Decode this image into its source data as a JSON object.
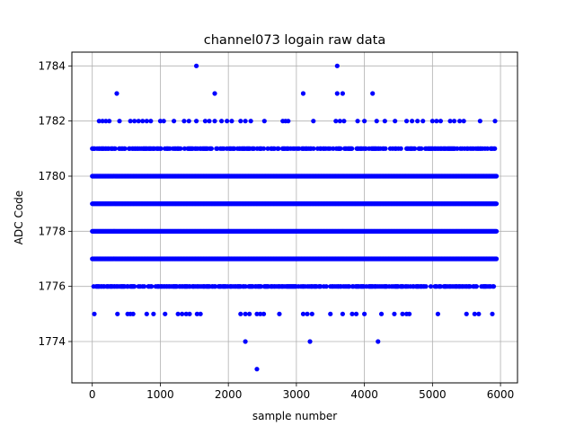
{
  "chart_data": {
    "type": "scatter",
    "title": "channel073 logain raw data",
    "xlabel": "sample number",
    "ylabel": "ADC Code",
    "xlim": [
      -300,
      6250
    ],
    "ylim": [
      1772.5,
      1784.5
    ],
    "xticks": [
      0,
      1000,
      2000,
      3000,
      4000,
      5000,
      6000
    ],
    "yticks": [
      1774,
      1776,
      1778,
      1780,
      1782,
      1784
    ],
    "grid": true,
    "marker_color": "#0000ff",
    "series": [
      {
        "bands": [
          {
            "y": 1781,
            "start": 0,
            "end": 5920,
            "step": 12,
            "density": 0.55,
            "seed": 11
          },
          {
            "y": 1780,
            "start": 0,
            "end": 5940,
            "step": 10,
            "density": 1.0,
            "seed": 12
          },
          {
            "y": 1779,
            "start": 0,
            "end": 5940,
            "step": 10,
            "density": 1.0,
            "seed": 13
          },
          {
            "y": 1778,
            "start": 0,
            "end": 5940,
            "step": 10,
            "density": 1.0,
            "seed": 14
          },
          {
            "y": 1777,
            "start": 0,
            "end": 5940,
            "step": 10,
            "density": 1.0,
            "seed": 15
          },
          {
            "y": 1776,
            "start": 20,
            "end": 5920,
            "step": 12,
            "density": 0.6,
            "seed": 16
          }
        ],
        "points": [
          {
            "x": 1530,
            "y": 1784
          },
          {
            "x": 3600,
            "y": 1784
          },
          {
            "x": 360,
            "y": 1783
          },
          {
            "x": 1800,
            "y": 1783
          },
          {
            "x": 3100,
            "y": 1783
          },
          {
            "x": 3600,
            "y": 1783
          },
          {
            "x": 3680,
            "y": 1783
          },
          {
            "x": 4120,
            "y": 1783
          },
          {
            "x": 100,
            "y": 1782
          },
          {
            "x": 150,
            "y": 1782
          },
          {
            "x": 200,
            "y": 1782
          },
          {
            "x": 250,
            "y": 1782
          },
          {
            "x": 400,
            "y": 1782
          },
          {
            "x": 560,
            "y": 1782
          },
          {
            "x": 620,
            "y": 1782
          },
          {
            "x": 680,
            "y": 1782
          },
          {
            "x": 740,
            "y": 1782
          },
          {
            "x": 800,
            "y": 1782
          },
          {
            "x": 860,
            "y": 1782
          },
          {
            "x": 1000,
            "y": 1782
          },
          {
            "x": 1050,
            "y": 1782
          },
          {
            "x": 1200,
            "y": 1782
          },
          {
            "x": 1350,
            "y": 1782
          },
          {
            "x": 1420,
            "y": 1782
          },
          {
            "x": 1530,
            "y": 1782
          },
          {
            "x": 1660,
            "y": 1782
          },
          {
            "x": 1720,
            "y": 1782
          },
          {
            "x": 1800,
            "y": 1782
          },
          {
            "x": 1900,
            "y": 1782
          },
          {
            "x": 1980,
            "y": 1782
          },
          {
            "x": 2050,
            "y": 1782
          },
          {
            "x": 2180,
            "y": 1782
          },
          {
            "x": 2250,
            "y": 1782
          },
          {
            "x": 2330,
            "y": 1782
          },
          {
            "x": 2530,
            "y": 1782
          },
          {
            "x": 2800,
            "y": 1782
          },
          {
            "x": 2840,
            "y": 1782
          },
          {
            "x": 2880,
            "y": 1782
          },
          {
            "x": 3250,
            "y": 1782
          },
          {
            "x": 3580,
            "y": 1782
          },
          {
            "x": 3640,
            "y": 1782
          },
          {
            "x": 3700,
            "y": 1782
          },
          {
            "x": 3900,
            "y": 1782
          },
          {
            "x": 4000,
            "y": 1782
          },
          {
            "x": 4180,
            "y": 1782
          },
          {
            "x": 4300,
            "y": 1782
          },
          {
            "x": 4450,
            "y": 1782
          },
          {
            "x": 4620,
            "y": 1782
          },
          {
            "x": 4700,
            "y": 1782
          },
          {
            "x": 4780,
            "y": 1782
          },
          {
            "x": 4860,
            "y": 1782
          },
          {
            "x": 5000,
            "y": 1782
          },
          {
            "x": 5060,
            "y": 1782
          },
          {
            "x": 5120,
            "y": 1782
          },
          {
            "x": 5260,
            "y": 1782
          },
          {
            "x": 5320,
            "y": 1782
          },
          {
            "x": 5400,
            "y": 1782
          },
          {
            "x": 5460,
            "y": 1782
          },
          {
            "x": 5700,
            "y": 1782
          },
          {
            "x": 5920,
            "y": 1782
          },
          {
            "x": 30,
            "y": 1775
          },
          {
            "x": 370,
            "y": 1775
          },
          {
            "x": 520,
            "y": 1775
          },
          {
            "x": 560,
            "y": 1775
          },
          {
            "x": 600,
            "y": 1775
          },
          {
            "x": 800,
            "y": 1775
          },
          {
            "x": 900,
            "y": 1775
          },
          {
            "x": 1070,
            "y": 1775
          },
          {
            "x": 1260,
            "y": 1775
          },
          {
            "x": 1320,
            "y": 1775
          },
          {
            "x": 1380,
            "y": 1775
          },
          {
            "x": 1430,
            "y": 1775
          },
          {
            "x": 1540,
            "y": 1775
          },
          {
            "x": 1590,
            "y": 1775
          },
          {
            "x": 2180,
            "y": 1775
          },
          {
            "x": 2250,
            "y": 1775
          },
          {
            "x": 2310,
            "y": 1775
          },
          {
            "x": 2420,
            "y": 1775
          },
          {
            "x": 2470,
            "y": 1775
          },
          {
            "x": 2520,
            "y": 1775
          },
          {
            "x": 2750,
            "y": 1775
          },
          {
            "x": 3100,
            "y": 1775
          },
          {
            "x": 3160,
            "y": 1775
          },
          {
            "x": 3230,
            "y": 1775
          },
          {
            "x": 3500,
            "y": 1775
          },
          {
            "x": 3680,
            "y": 1775
          },
          {
            "x": 3820,
            "y": 1775
          },
          {
            "x": 3880,
            "y": 1775
          },
          {
            "x": 4000,
            "y": 1775
          },
          {
            "x": 4250,
            "y": 1775
          },
          {
            "x": 4440,
            "y": 1775
          },
          {
            "x": 4560,
            "y": 1775
          },
          {
            "x": 4620,
            "y": 1775
          },
          {
            "x": 4660,
            "y": 1775
          },
          {
            "x": 5080,
            "y": 1775
          },
          {
            "x": 5500,
            "y": 1775
          },
          {
            "x": 5620,
            "y": 1775
          },
          {
            "x": 5680,
            "y": 1775
          },
          {
            "x": 5880,
            "y": 1775
          },
          {
            "x": 2250,
            "y": 1774
          },
          {
            "x": 3200,
            "y": 1774
          },
          {
            "x": 4200,
            "y": 1774
          },
          {
            "x": 2420,
            "y": 1773
          }
        ]
      }
    ]
  }
}
